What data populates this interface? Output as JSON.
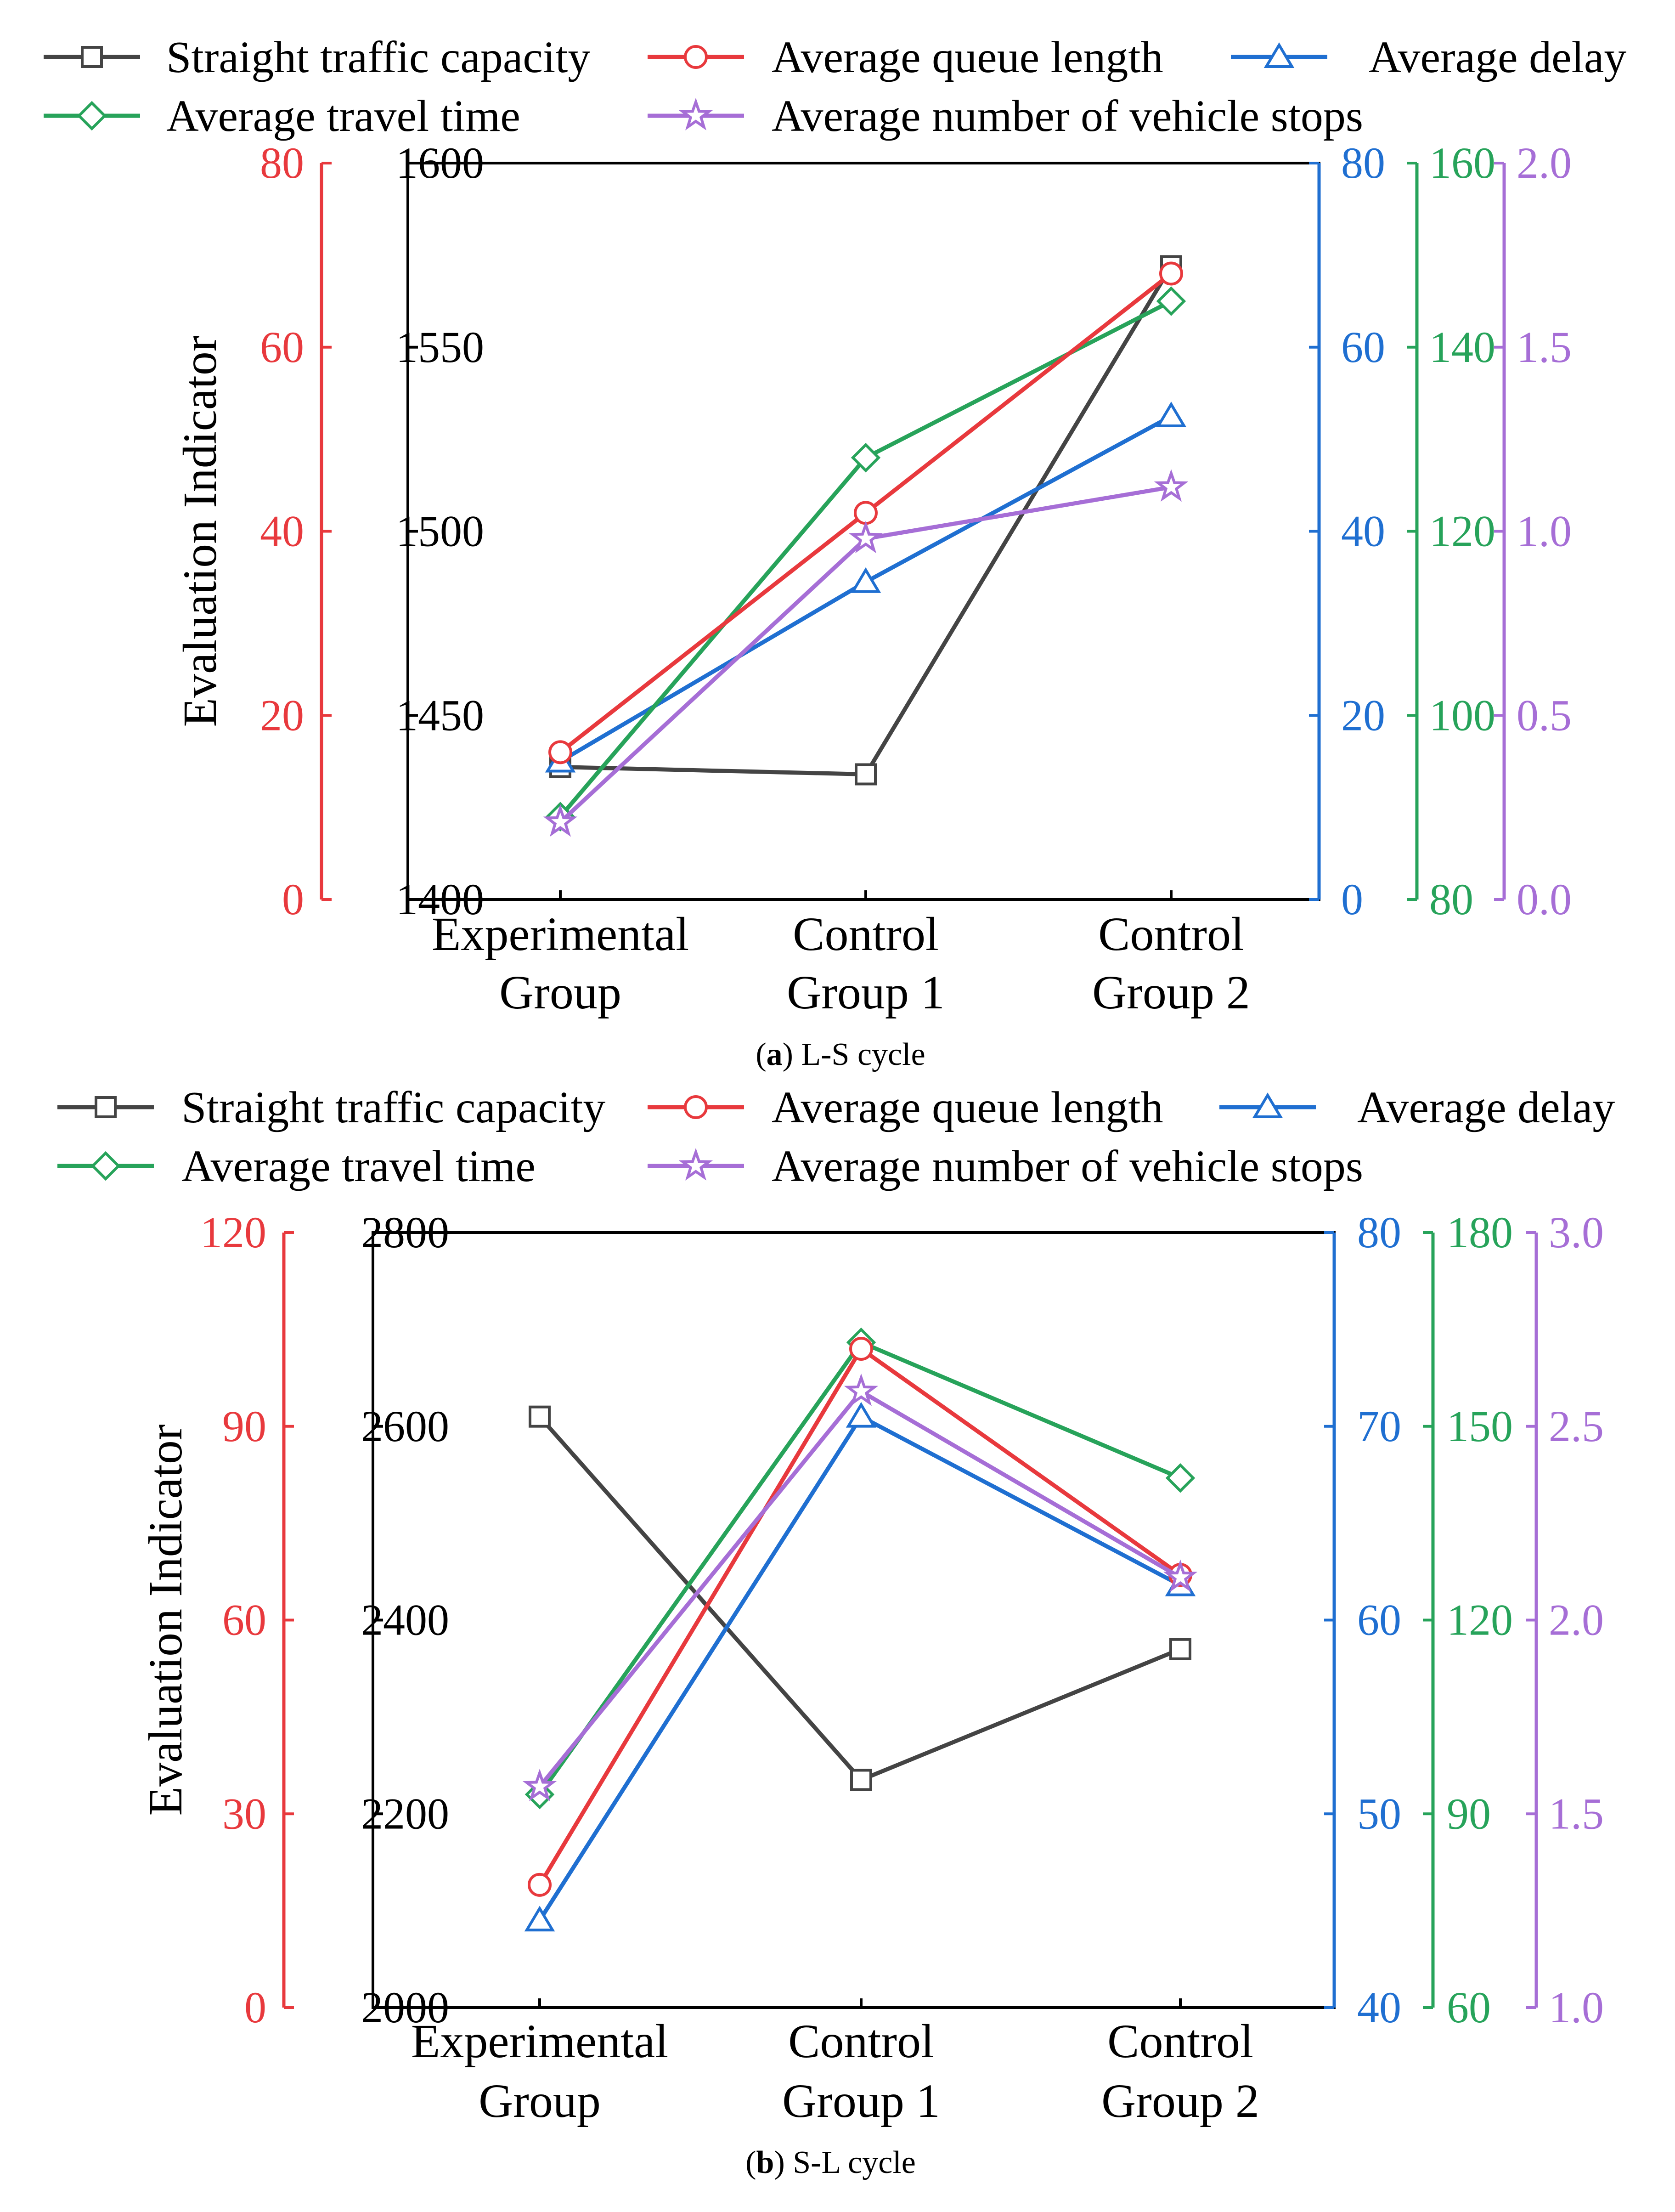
{
  "chart_data": [
    {
      "type": "line",
      "id": "a",
      "caption_letter": "a",
      "caption_text": ") L-S cycle",
      "caption_open": "(",
      "ylabel": "Evaluation Indicator",
      "categories": [
        "Experimental Group",
        "Control Group 1",
        "Control Group 2"
      ],
      "category_lines": [
        [
          "Experimental",
          "Group"
        ],
        [
          "Control",
          "Group 1"
        ],
        [
          "Control",
          "Group 2"
        ]
      ],
      "legend_labels": {
        "capacity": "Straight traffic capacity",
        "queue": "Average queue length",
        "delay": "Average delay",
        "travel": "Average travel time",
        "stops": "Average number of vehicle stops"
      },
      "axes": {
        "queue": {
          "color": "#e8393d",
          "min": 0,
          "max": 80,
          "ticks": [
            "0",
            "20",
            "40",
            "60",
            "80"
          ]
        },
        "capacity": {
          "color": "#000000",
          "min": 1400,
          "max": 1600,
          "ticks": [
            "1400",
            "1450",
            "1500",
            "1550",
            "1600"
          ]
        },
        "delay": {
          "color": "#1f6fd1",
          "min": 0,
          "max": 80,
          "ticks": [
            "0",
            "20",
            "40",
            "60",
            "80"
          ]
        },
        "travel": {
          "color": "#27a35a",
          "min": 80,
          "max": 160,
          "ticks": [
            "80",
            "100",
            "120",
            "140",
            "160"
          ]
        },
        "stops": {
          "color": "#a66ed6",
          "min": 0,
          "max": 2,
          "ticks": [
            "0.0",
            "0.5",
            "1.0",
            "1.5",
            "2.0"
          ]
        }
      },
      "series": [
        {
          "key": "capacity",
          "name": "Straight traffic capacity",
          "values": [
            1436,
            1434,
            1572
          ],
          "color": "#444444",
          "marker": "square"
        },
        {
          "key": "queue",
          "name": "Average queue length",
          "values": [
            16,
            42,
            68
          ],
          "color": "#e8393d",
          "marker": "circle"
        },
        {
          "key": "delay",
          "name": "Average delay",
          "values": [
            15,
            34.5,
            52.5
          ],
          "color": "#1f6fd1",
          "marker": "triangle"
        },
        {
          "key": "travel",
          "name": "Average travel time",
          "values": [
            89,
            128,
            145
          ],
          "color": "#27a35a",
          "marker": "diamond"
        },
        {
          "key": "stops",
          "name": "Average number of vehicle stops",
          "values": [
            0.21,
            0.98,
            1.12
          ],
          "color": "#a66ed6",
          "marker": "star"
        }
      ]
    },
    {
      "type": "line",
      "id": "b",
      "caption_letter": "b",
      "caption_text": ") S-L cycle",
      "caption_open": "(",
      "ylabel": "Evaluation Indicator",
      "categories": [
        "Experimental Group",
        "Control Group 1",
        "Control Group 2"
      ],
      "category_lines": [
        [
          "Experimental",
          "Group"
        ],
        [
          "Control",
          "Group 1"
        ],
        [
          "Control",
          "Group 2"
        ]
      ],
      "legend_labels": {
        "capacity": "Straight traffic capacity",
        "queue": "Average queue length",
        "delay": "Average delay",
        "travel": "Average travel time",
        "stops": "Average number of vehicle stops"
      },
      "axes": {
        "queue": {
          "color": "#e8393d",
          "min": 0,
          "max": 120,
          "ticks": [
            "0",
            "30",
            "60",
            "90",
            "120"
          ]
        },
        "capacity": {
          "color": "#000000",
          "min": 2000,
          "max": 2800,
          "ticks": [
            "2000",
            "2200",
            "2400",
            "2600",
            "2800"
          ]
        },
        "delay": {
          "color": "#1f6fd1",
          "min": 40,
          "max": 80,
          "ticks": [
            "40",
            "50",
            "60",
            "70",
            "80"
          ]
        },
        "travel": {
          "color": "#27a35a",
          "min": 60,
          "max": 180,
          "ticks": [
            "60",
            "90",
            "120",
            "150",
            "180"
          ]
        },
        "stops": {
          "color": "#a66ed6",
          "min": 1.0,
          "max": 3.0,
          "ticks": [
            "1.0",
            "1.5",
            "2.0",
            "2.5",
            "3.0"
          ]
        }
      },
      "series": [
        {
          "key": "capacity",
          "name": "Straight traffic capacity",
          "values": [
            2610,
            2235,
            2370
          ],
          "color": "#444444",
          "marker": "square"
        },
        {
          "key": "queue",
          "name": "Average queue length",
          "values": [
            19,
            102,
            67
          ],
          "color": "#e8393d",
          "marker": "circle"
        },
        {
          "key": "delay",
          "name": "Average delay",
          "values": [
            44.5,
            70.5,
            61.8
          ],
          "color": "#1f6fd1",
          "marker": "triangle"
        },
        {
          "key": "travel",
          "name": "Average travel time",
          "values": [
            93,
            163,
            142
          ],
          "color": "#27a35a",
          "marker": "diamond"
        },
        {
          "key": "stops",
          "name": "Average number of vehicle stops",
          "values": [
            1.57,
            2.59,
            2.11
          ],
          "color": "#a66ed6",
          "marker": "star"
        }
      ]
    }
  ]
}
